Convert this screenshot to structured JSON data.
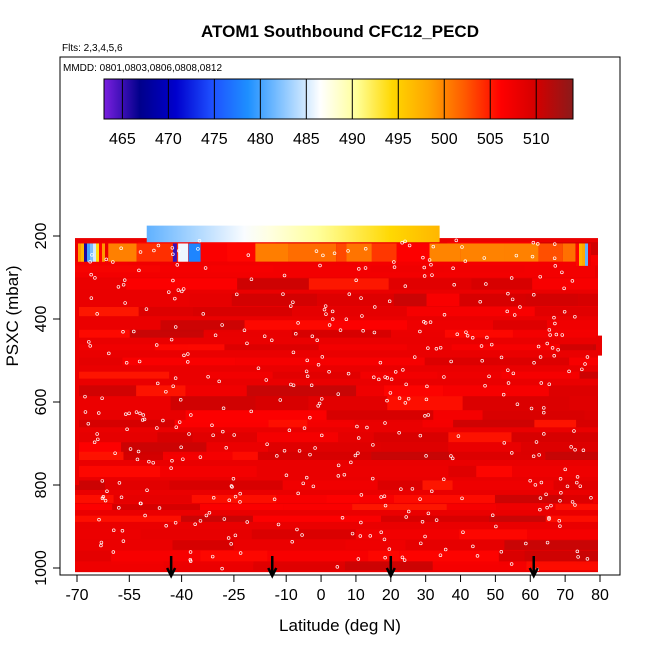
{
  "chart_data": {
    "type": "heatmap",
    "title": "ATOM1 Southbound CFC12_PECD",
    "notes": [
      "Flts: 2,3,4,5,6",
      "MMDD: 0801,0803,0806,0808,0812"
    ],
    "xlabel": "Latitude (deg N)",
    "ylabel": "PSXC (mbar)",
    "xlim": [
      -70,
      82
    ],
    "ylim": [
      1010,
      30
    ],
    "y_reversed": true,
    "x_ticks": [
      -70,
      -55,
      -40,
      -25,
      -10,
      0,
      10,
      20,
      30,
      40,
      50,
      60,
      70,
      80
    ],
    "y_ticks": [
      200,
      400,
      600,
      800,
      1000
    ],
    "colorbar": {
      "ticks": [
        465,
        470,
        475,
        480,
        485,
        490,
        495,
        500,
        505,
        510
      ],
      "range": [
        463,
        514
      ],
      "colors": [
        "#7a1fe0",
        "#00008b",
        "#0000cd",
        "#1e50ff",
        "#1e90ff",
        "#8ec8ff",
        "#ffffff",
        "#ffff99",
        "#ffd700",
        "#ffa500",
        "#ff5a00",
        "#ff0000",
        "#d20000",
        "#8b1a1a"
      ]
    },
    "field": {
      "top_band": {
        "x": [
          -50,
          34
        ],
        "p": [
          175,
          215
        ],
        "value_range": [
          481,
          497
        ]
      },
      "main_value": 508,
      "lower_edge_mbar": 1010,
      "left_patch_values": [
        508,
        499,
        497,
        466,
        480,
        482,
        485,
        494,
        506,
        499,
        508
      ],
      "right_patch_values": [
        506,
        497,
        498,
        481,
        508
      ]
    },
    "arrows_lat": [
      -43,
      -14,
      20,
      61
    ]
  }
}
